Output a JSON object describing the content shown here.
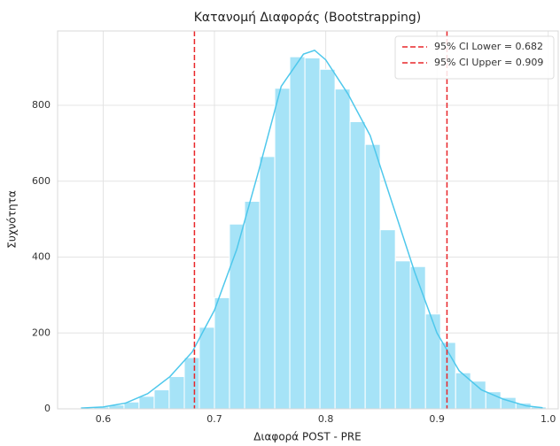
{
  "chart_data": {
    "type": "histogram",
    "title": "Κατανομή Διαφοράς (Bootstrapping)",
    "x_label": "Διαφορά POST - PRE",
    "y_label": "Συχνότητα",
    "bins": [
      0.578,
      0.5916,
      0.6051,
      0.6187,
      0.6322,
      0.6458,
      0.6593,
      0.6729,
      0.6864,
      0.7,
      0.7135,
      0.7271,
      0.7406,
      0.7542,
      0.7677,
      0.7813,
      0.7948,
      0.8084,
      0.8219,
      0.8355,
      0.849,
      0.8626,
      0.8761,
      0.8897,
      0.9032,
      0.9168,
      0.9303,
      0.9439,
      0.9574,
      0.971,
      0.9845,
      0.9981
    ],
    "values": [
      2,
      5,
      10,
      18,
      33,
      50,
      85,
      135,
      215,
      293,
      487,
      547,
      665,
      845,
      928,
      925,
      895,
      843,
      757,
      697,
      472,
      390,
      375,
      250,
      175,
      95,
      73,
      45,
      30,
      15,
      5
    ],
    "color": "#a6e3f7",
    "kde": {
      "color": "#4fc8ec",
      "x": [
        0.58,
        0.6,
        0.62,
        0.64,
        0.66,
        0.68,
        0.7,
        0.72,
        0.74,
        0.76,
        0.78,
        0.79,
        0.8,
        0.82,
        0.84,
        0.86,
        0.88,
        0.9,
        0.92,
        0.94,
        0.96,
        0.98,
        0.995
      ],
      "y": [
        2,
        5,
        15,
        40,
        85,
        150,
        260,
        420,
        630,
        850,
        935,
        945,
        920,
        830,
        720,
        540,
        360,
        200,
        100,
        50,
        25,
        8,
        3
      ]
    },
    "vlines": [
      {
        "x": 0.682,
        "label": "95% CI Lower = 0.682",
        "color": "#e8262a"
      },
      {
        "x": 0.909,
        "label": "95% CI Upper = 0.909",
        "color": "#e8262a"
      }
    ],
    "xlim": [
      0.559,
      1.009
    ],
    "ylim": [
      0,
      996
    ],
    "xticks": [
      0.6,
      0.7,
      0.8,
      0.9,
      {
        "value": 1.0,
        "label": "1.0"
      }
    ],
    "yticks": [
      0,
      200,
      400,
      600,
      800
    ],
    "grid": true,
    "legend": "upper-right"
  }
}
